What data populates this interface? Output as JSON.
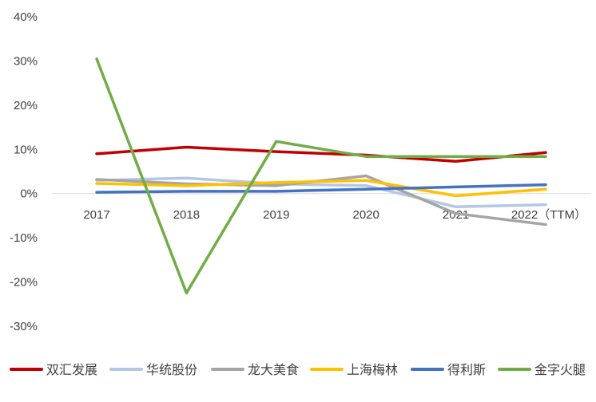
{
  "chart_data": {
    "type": "line",
    "categories": [
      "2017",
      "2018",
      "2019",
      "2020",
      "2021",
      "2022（TTM）"
    ],
    "ylim": [
      -30,
      40
    ],
    "yticks": [
      -30,
      -20,
      -10,
      0,
      10,
      20,
      30,
      40
    ],
    "ytick_labels": [
      "-30%",
      "-20%",
      "-10%",
      "0%",
      "10%",
      "20%",
      "30%",
      "40%"
    ],
    "grid": false,
    "legend_position": "bottom",
    "series": [
      {
        "name": "双汇发展",
        "color": "#c00000",
        "values": [
          9.0,
          10.5,
          9.5,
          8.7,
          7.3,
          9.3
        ]
      },
      {
        "name": "华统股份",
        "color": "#b4c7e7",
        "values": [
          3.0,
          3.5,
          2.2,
          1.8,
          -3.0,
          -2.5
        ]
      },
      {
        "name": "龙大美食",
        "color": "#a5a5a5",
        "values": [
          3.2,
          2.2,
          1.8,
          4.0,
          -4.5,
          -7.0
        ]
      },
      {
        "name": "上海梅林",
        "color": "#ffc000",
        "values": [
          2.3,
          1.8,
          2.5,
          3.0,
          -0.5,
          1.0
        ]
      },
      {
        "name": "得利斯",
        "color": "#4472c4",
        "values": [
          0.3,
          0.5,
          0.5,
          1.0,
          1.5,
          2.0
        ]
      },
      {
        "name": "金字火腿",
        "color": "#70ad47",
        "values": [
          30.5,
          -22.5,
          11.8,
          8.4,
          8.4,
          8.4
        ]
      }
    ]
  }
}
